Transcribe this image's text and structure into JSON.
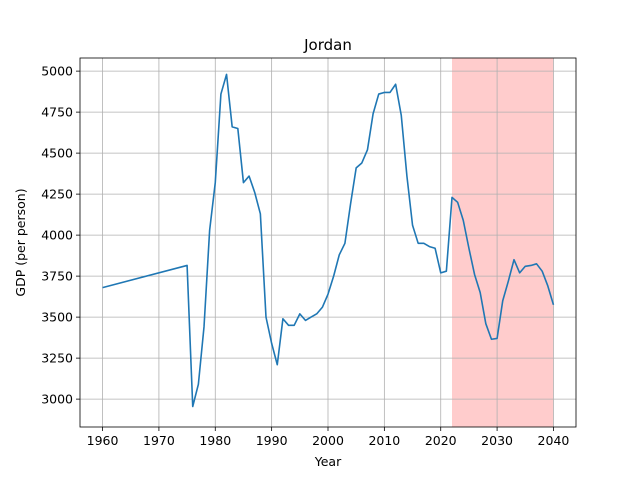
{
  "chart_data": {
    "type": "line",
    "title": "Jordan",
    "xlabel": "Year",
    "ylabel": "GDP (per person)",
    "xlim": [
      1956,
      2044
    ],
    "ylim": [
      2830,
      5080
    ],
    "xticks": [
      1960,
      1970,
      1980,
      1990,
      2000,
      2010,
      2020,
      2030,
      2040
    ],
    "yticks": [
      3000,
      3250,
      3500,
      3750,
      4000,
      4250,
      4500,
      4750,
      5000
    ],
    "grid": true,
    "line_color": "#1f77b4",
    "shaded_region": {
      "x": [
        2022,
        2040
      ],
      "color": "#ffcccc"
    },
    "series": [
      {
        "x": [
          1960,
          1975,
          1976,
          1977,
          1978,
          1979,
          1980,
          1981,
          1982,
          1983,
          1984,
          1985,
          1986,
          1987,
          1988,
          1989,
          1990,
          1991,
          1992,
          1993,
          1994,
          1995,
          1996,
          1997,
          1998,
          1999,
          2000,
          2001,
          2002,
          2003,
          2004,
          2005,
          2006,
          2007,
          2008,
          2009,
          2010,
          2011,
          2012,
          2013,
          2014,
          2015,
          2016,
          2017,
          2018,
          2019,
          2020,
          2021,
          2022,
          2023,
          2024,
          2025,
          2026,
          2027,
          2028,
          2029,
          2030,
          2031,
          2032,
          2033,
          2034,
          2035,
          2036,
          2037,
          2038,
          2039,
          2040
        ],
        "y": [
          3680,
          3815,
          2955,
          3090,
          3440,
          4030,
          4320,
          4860,
          4980,
          4660,
          4650,
          4320,
          4360,
          4260,
          4130,
          3500,
          3340,
          3210,
          3490,
          3450,
          3450,
          3520,
          3480,
          3500,
          3520,
          3560,
          3640,
          3750,
          3880,
          3950,
          4190,
          4410,
          4440,
          4520,
          4740,
          4860,
          4870,
          4870,
          4920,
          4730,
          4360,
          4060,
          3950,
          3950,
          3930,
          3920,
          3770,
          3780,
          4230,
          4200,
          4090,
          3920,
          3760,
          3650,
          3460,
          3365,
          3370,
          3600,
          3720,
          3850,
          3770,
          3810,
          3815,
          3825,
          3780,
          3690,
          3575
        ]
      }
    ]
  }
}
